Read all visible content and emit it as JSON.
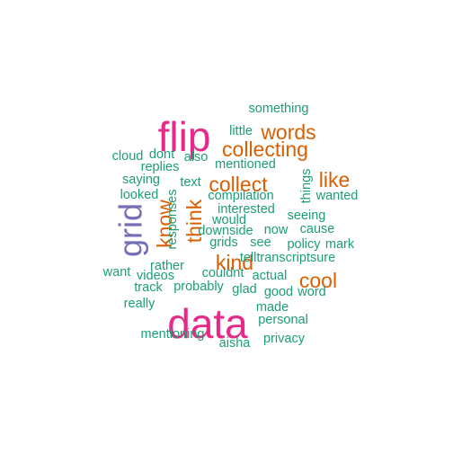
{
  "chart_data": {
    "type": "wordcloud",
    "colors": {
      "top": "#E7298A",
      "high": "#D95F02",
      "mid": "#7570B3",
      "low": "#1B9E77"
    },
    "words": [
      {
        "text": "flip",
        "tier": "top"
      },
      {
        "text": "data",
        "tier": "top"
      },
      {
        "text": "grid",
        "tier": "mid"
      },
      {
        "text": "words",
        "tier": "high"
      },
      {
        "text": "collecting",
        "tier": "high"
      },
      {
        "text": "collect",
        "tier": "high"
      },
      {
        "text": "like",
        "tier": "high"
      },
      {
        "text": "know",
        "tier": "high"
      },
      {
        "text": "think",
        "tier": "high"
      },
      {
        "text": "kind",
        "tier": "high"
      },
      {
        "text": "cool",
        "tier": "high"
      },
      {
        "text": "something",
        "tier": "low"
      },
      {
        "text": "little",
        "tier": "low"
      },
      {
        "text": "cloud",
        "tier": "low"
      },
      {
        "text": "dont",
        "tier": "low"
      },
      {
        "text": "also",
        "tier": "low"
      },
      {
        "text": "replies",
        "tier": "low"
      },
      {
        "text": "mentioned",
        "tier": "low"
      },
      {
        "text": "saying",
        "tier": "low"
      },
      {
        "text": "text",
        "tier": "low"
      },
      {
        "text": "looked",
        "tier": "low"
      },
      {
        "text": "compilation",
        "tier": "low"
      },
      {
        "text": "things",
        "tier": "low"
      },
      {
        "text": "wanted",
        "tier": "low"
      },
      {
        "text": "responses",
        "tier": "low"
      },
      {
        "text": "interested",
        "tier": "low"
      },
      {
        "text": "seeing",
        "tier": "low"
      },
      {
        "text": "would",
        "tier": "low"
      },
      {
        "text": "downside",
        "tier": "low"
      },
      {
        "text": "now",
        "tier": "low"
      },
      {
        "text": "cause",
        "tier": "low"
      },
      {
        "text": "grids",
        "tier": "low"
      },
      {
        "text": "see",
        "tier": "low"
      },
      {
        "text": "policy",
        "tier": "low"
      },
      {
        "text": "mark",
        "tier": "low"
      },
      {
        "text": "telltranscriptsure",
        "tier": "low"
      },
      {
        "text": "want",
        "tier": "low"
      },
      {
        "text": "rather",
        "tier": "low"
      },
      {
        "text": "couldnt",
        "tier": "low"
      },
      {
        "text": "actual",
        "tier": "low"
      },
      {
        "text": "videos",
        "tier": "low"
      },
      {
        "text": "track",
        "tier": "low"
      },
      {
        "text": "probably",
        "tier": "low"
      },
      {
        "text": "glad",
        "tier": "low"
      },
      {
        "text": "good",
        "tier": "low"
      },
      {
        "text": "word",
        "tier": "low"
      },
      {
        "text": "really",
        "tier": "low"
      },
      {
        "text": "made",
        "tier": "low"
      },
      {
        "text": "personal",
        "tier": "low"
      },
      {
        "text": "mentioning",
        "tier": "low"
      },
      {
        "text": "aisha",
        "tier": "low"
      },
      {
        "text": "privacy",
        "tier": "low"
      }
    ]
  }
}
